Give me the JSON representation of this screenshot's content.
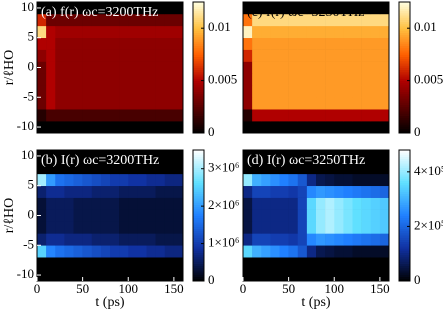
{
  "chart_data": [
    {
      "type": "heatmap",
      "title": "(a) f(r) ωc=3200THz",
      "title_color": "#ffffff",
      "ylabel": "r/ℓHO",
      "xlim": [
        0,
        160
      ],
      "ylim": [
        -11,
        11
      ],
      "yticks": [
        -10,
        -5,
        0,
        5,
        10
      ],
      "xbins": [
        0,
        10,
        20,
        30,
        40,
        50,
        60,
        70,
        80,
        90,
        100,
        110,
        120,
        130,
        140,
        150,
        160
      ],
      "ybins": [
        -11,
        -9,
        -7,
        -5,
        -3,
        -1,
        1,
        3,
        5,
        7,
        9,
        11
      ],
      "z": [
        [
          0,
          0,
          0,
          0,
          0,
          0,
          0,
          0,
          0,
          0,
          0,
          0,
          0,
          0,
          0,
          0
        ],
        [
          0.001,
          0.002,
          0.002,
          0.002,
          0.002,
          0.002,
          0.002,
          0.002,
          0.002,
          0.002,
          0.002,
          0.002,
          0.002,
          0.002,
          0.002,
          0.002
        ],
        [
          0.003,
          0.005,
          0.004,
          0.004,
          0.004,
          0.004,
          0.004,
          0.004,
          0.004,
          0.004,
          0.004,
          0.004,
          0.004,
          0.004,
          0.004,
          0.004
        ],
        [
          0.003,
          0.005,
          0.004,
          0.004,
          0.004,
          0.004,
          0.004,
          0.004,
          0.004,
          0.004,
          0.004,
          0.004,
          0.004,
          0.004,
          0.004,
          0.004
        ],
        [
          0.003,
          0.005,
          0.004,
          0.004,
          0.004,
          0.004,
          0.004,
          0.004,
          0.004,
          0.004,
          0.004,
          0.004,
          0.004,
          0.004,
          0.004,
          0.004
        ],
        [
          0.003,
          0.005,
          0.004,
          0.004,
          0.004,
          0.004,
          0.004,
          0.004,
          0.004,
          0.004,
          0.004,
          0.004,
          0.004,
          0.004,
          0.004,
          0.004
        ],
        [
          0.004,
          0.005,
          0.004,
          0.004,
          0.004,
          0.004,
          0.004,
          0.004,
          0.004,
          0.004,
          0.004,
          0.004,
          0.004,
          0.004,
          0.004,
          0.004
        ],
        [
          0.005,
          0.005,
          0.004,
          0.004,
          0.004,
          0.004,
          0.004,
          0.004,
          0.004,
          0.004,
          0.004,
          0.004,
          0.004,
          0.004,
          0.004,
          0.004
        ],
        [
          0.011,
          0.005,
          0.0045,
          0.0045,
          0.0045,
          0.0045,
          0.0045,
          0.0045,
          0.0045,
          0.0045,
          0.0045,
          0.0045,
          0.0045,
          0.0045,
          0.0045,
          0.0045
        ],
        [
          0.006,
          0.003,
          0.003,
          0.003,
          0.003,
          0.003,
          0.003,
          0.003,
          0.003,
          0.003,
          0.003,
          0.003,
          0.003,
          0.003,
          0.003,
          0.003
        ],
        [
          0,
          0,
          0,
          0,
          0,
          0,
          0,
          0,
          0,
          0,
          0,
          0,
          0,
          0,
          0,
          0
        ]
      ],
      "zlim": [
        0,
        0.0125
      ],
      "zticks": [
        0,
        0.005,
        0.01
      ],
      "colormap": [
        "#000000",
        "#5a0000",
        "#b00000",
        "#ff6000",
        "#ffc040",
        "#ffffe0"
      ]
    },
    {
      "type": "heatmap",
      "title": "(b) I(r) ωc=3200THz",
      "title_color": "#ffffff",
      "ylabel": "r/ℓHO",
      "xlabel": "t (ps)",
      "xlim": [
        0,
        160
      ],
      "ylim": [
        -11,
        11
      ],
      "xticks": [
        0,
        50,
        100,
        150
      ],
      "yticks": [
        -10,
        -5,
        0,
        5,
        10
      ],
      "xbins": [
        0,
        10,
        20,
        30,
        40,
        50,
        60,
        70,
        80,
        90,
        100,
        110,
        120,
        130,
        140,
        150,
        160
      ],
      "ybins": [
        -11,
        -9,
        -7,
        -5,
        -3,
        -1,
        1,
        3,
        5,
        7,
        9,
        11
      ],
      "z": [
        [
          0,
          0,
          0,
          0,
          0,
          0,
          0,
          0,
          0,
          0,
          0,
          0,
          0,
          0,
          0,
          0
        ],
        [
          0,
          0,
          0,
          0,
          0,
          0,
          0,
          0,
          0,
          0,
          0,
          0,
          0,
          0,
          0,
          0
        ],
        [
          2500000,
          1800000,
          1600000,
          1500000,
          1400000,
          1300000,
          1200000,
          1100000,
          1000000,
          1000000,
          900000,
          900000,
          800000,
          800000,
          700000,
          700000
        ],
        [
          600000,
          800000,
          800000,
          700000,
          700000,
          700000,
          600000,
          600000,
          600000,
          500000,
          500000,
          500000,
          500000,
          400000,
          400000,
          400000
        ],
        [
          300000,
          500000,
          500000,
          500000,
          400000,
          400000,
          400000,
          400000,
          400000,
          300000,
          300000,
          300000,
          300000,
          300000,
          300000,
          300000
        ],
        [
          300000,
          500000,
          500000,
          500000,
          400000,
          400000,
          400000,
          400000,
          400000,
          300000,
          300000,
          300000,
          300000,
          300000,
          300000,
          300000
        ],
        [
          300000,
          500000,
          500000,
          500000,
          400000,
          400000,
          400000,
          400000,
          400000,
          300000,
          300000,
          300000,
          300000,
          300000,
          300000,
          300000
        ],
        [
          600000,
          800000,
          800000,
          700000,
          700000,
          700000,
          600000,
          600000,
          600000,
          500000,
          500000,
          500000,
          500000,
          400000,
          400000,
          400000
        ],
        [
          3000000,
          2000000,
          1600000,
          1500000,
          1400000,
          1300000,
          1200000,
          1100000,
          1000000,
          1000000,
          900000,
          900000,
          800000,
          800000,
          700000,
          700000
        ],
        [
          0,
          0,
          0,
          0,
          0,
          0,
          0,
          0,
          0,
          0,
          0,
          0,
          0,
          0,
          0,
          0
        ],
        [
          0,
          0,
          0,
          0,
          0,
          0,
          0,
          0,
          0,
          0,
          0,
          0,
          0,
          0,
          0,
          0
        ]
      ],
      "zlim": [
        0,
        3500000
      ],
      "zticks": [
        0,
        {
          "value": 1000000,
          "label": "1×10⁶"
        },
        {
          "value": 2000000,
          "label": "2×10⁶"
        },
        {
          "value": 3000000,
          "label": "3×10⁶"
        }
      ],
      "colormap": [
        "#000000",
        "#1030a0",
        "#2080ff",
        "#60e0ff",
        "#ffffff"
      ]
    },
    {
      "type": "heatmap",
      "title": "(c) f(r) ωc=3250THz",
      "title_color": "#000000",
      "xlim": [
        0,
        160
      ],
      "ylim": [
        -11,
        11
      ],
      "xbins": [
        0,
        10,
        20,
        30,
        40,
        50,
        60,
        70,
        80,
        90,
        100,
        110,
        120,
        130,
        140,
        150,
        160
      ],
      "ybins": [
        -11,
        -9,
        -7,
        -5,
        -3,
        -1,
        1,
        3,
        5,
        7,
        9,
        11
      ],
      "z": [
        [
          0,
          0,
          0,
          0,
          0,
          0,
          0,
          0,
          0,
          0,
          0,
          0,
          0,
          0,
          0,
          0
        ],
        [
          0.001,
          0.005,
          0.005,
          0.005,
          0.005,
          0.005,
          0.005,
          0.005,
          0.005,
          0.005,
          0.005,
          0.005,
          0.005,
          0.005,
          0.005,
          0.005
        ],
        [
          0.004,
          0.009,
          0.009,
          0.009,
          0.009,
          0.009,
          0.009,
          0.009,
          0.009,
          0.009,
          0.009,
          0.009,
          0.009,
          0.009,
          0.009,
          0.009
        ],
        [
          0.004,
          0.009,
          0.009,
          0.009,
          0.009,
          0.009,
          0.009,
          0.009,
          0.009,
          0.009,
          0.009,
          0.009,
          0.009,
          0.009,
          0.009,
          0.009
        ],
        [
          0.004,
          0.009,
          0.009,
          0.009,
          0.009,
          0.009,
          0.009,
          0.009,
          0.009,
          0.009,
          0.009,
          0.009,
          0.009,
          0.009,
          0.009,
          0.009
        ],
        [
          0.004,
          0.009,
          0.009,
          0.009,
          0.009,
          0.009,
          0.009,
          0.009,
          0.009,
          0.009,
          0.009,
          0.009,
          0.009,
          0.009,
          0.009,
          0.009
        ],
        [
          0.006,
          0.009,
          0.009,
          0.009,
          0.009,
          0.009,
          0.009,
          0.009,
          0.009,
          0.009,
          0.009,
          0.009,
          0.009,
          0.009,
          0.009,
          0.009
        ],
        [
          0.008,
          0.009,
          0.009,
          0.009,
          0.009,
          0.009,
          0.009,
          0.009,
          0.009,
          0.009,
          0.009,
          0.009,
          0.009,
          0.009,
          0.009,
          0.009
        ],
        [
          0.012,
          0.0095,
          0.0095,
          0.0095,
          0.0095,
          0.0095,
          0.0095,
          0.0095,
          0.0095,
          0.0095,
          0.0095,
          0.0095,
          0.0095,
          0.0095,
          0.0095,
          0.0095
        ],
        [
          0.008,
          0.011,
          0.011,
          0.011,
          0.011,
          0.011,
          0.011,
          0.011,
          0.011,
          0.011,
          0.011,
          0.011,
          0.011,
          0.011,
          0.011,
          0.011
        ],
        [
          0,
          0,
          0,
          0,
          0,
          0,
          0,
          0,
          0,
          0,
          0,
          0,
          0,
          0,
          0,
          0
        ]
      ],
      "zlim": [
        0,
        0.0125
      ],
      "zticks": [
        0,
        0.005,
        0.01
      ],
      "colormap": [
        "#000000",
        "#5a0000",
        "#b00000",
        "#ff6000",
        "#ffc040",
        "#ffffe0"
      ]
    },
    {
      "type": "heatmap",
      "title": "(d) I(r) ωc=3250THz",
      "title_color": "#ffffff",
      "xlabel": "t (ps)",
      "xlim": [
        0,
        160
      ],
      "ylim": [
        -11,
        11
      ],
      "xticks": [
        0,
        50,
        100,
        150
      ],
      "xbins": [
        0,
        10,
        20,
        30,
        40,
        50,
        60,
        70,
        80,
        90,
        100,
        110,
        120,
        130,
        140,
        150,
        160
      ],
      "ybins": [
        -11,
        -9,
        -7,
        -5,
        -3,
        -1,
        1,
        3,
        5,
        7,
        9,
        11
      ],
      "z": [
        [
          0,
          0,
          0,
          0,
          0,
          0,
          0,
          0,
          0,
          0,
          0,
          0,
          0,
          0,
          0,
          0
        ],
        [
          0,
          0,
          0,
          0,
          0,
          0,
          0,
          0,
          0,
          0,
          0,
          0,
          0,
          0,
          0,
          0
        ],
        [
          350000,
          300000,
          280000,
          260000,
          240000,
          220000,
          180000,
          100000,
          60000,
          50000,
          40000,
          40000,
          30000,
          30000,
          30000,
          30000
        ],
        [
          100000,
          150000,
          150000,
          140000,
          140000,
          130000,
          150000,
          250000,
          270000,
          260000,
          250000,
          240000,
          230000,
          220000,
          210000,
          200000
        ],
        [
          50000,
          100000,
          100000,
          100000,
          100000,
          100000,
          150000,
          350000,
          400000,
          420000,
          400000,
          380000,
          360000,
          350000,
          340000,
          330000
        ],
        [
          50000,
          100000,
          100000,
          100000,
          100000,
          100000,
          150000,
          350000,
          400000,
          420000,
          400000,
          380000,
          360000,
          350000,
          340000,
          330000
        ],
        [
          50000,
          100000,
          100000,
          100000,
          100000,
          100000,
          150000,
          350000,
          400000,
          420000,
          400000,
          380000,
          360000,
          350000,
          340000,
          330000
        ],
        [
          100000,
          150000,
          150000,
          140000,
          140000,
          130000,
          150000,
          250000,
          270000,
          260000,
          250000,
          240000,
          230000,
          220000,
          210000,
          200000
        ],
        [
          400000,
          300000,
          280000,
          260000,
          240000,
          220000,
          180000,
          100000,
          60000,
          50000,
          40000,
          40000,
          30000,
          30000,
          30000,
          30000
        ],
        [
          0,
          0,
          0,
          0,
          0,
          0,
          0,
          0,
          0,
          0,
          0,
          0,
          0,
          0,
          0,
          0
        ],
        [
          0,
          0,
          0,
          0,
          0,
          0,
          0,
          0,
          0,
          0,
          0,
          0,
          0,
          0,
          0,
          0
        ]
      ],
      "zlim": [
        0,
        480000
      ],
      "zticks": [
        0,
        {
          "value": 200000,
          "label": "2×10⁵"
        },
        {
          "value": 400000,
          "label": "4×10⁵"
        }
      ],
      "colormap": [
        "#000000",
        "#1030a0",
        "#2080ff",
        "#60e0ff",
        "#ffffff"
      ]
    }
  ]
}
